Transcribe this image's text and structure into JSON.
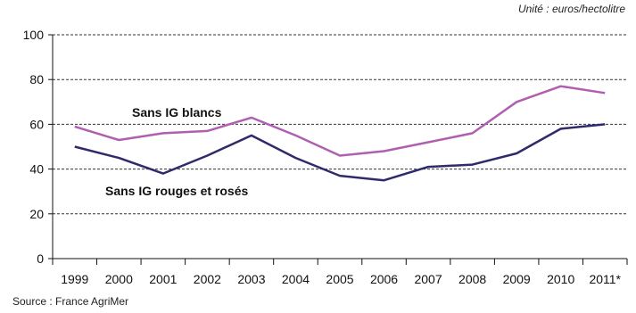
{
  "unit_note": "Unité : euros/hectolitre",
  "source_note": "Source : France AgriMer",
  "chart_data": {
    "type": "line",
    "x": [
      "1999",
      "2000",
      "2001",
      "2002",
      "2003",
      "2004",
      "2005",
      "2006",
      "2007",
      "2008",
      "2009",
      "2010",
      "2011*"
    ],
    "ylim": [
      0,
      100
    ],
    "yticks": [
      0,
      20,
      40,
      60,
      80,
      100
    ],
    "grid": true,
    "series": [
      {
        "name": "Sans IG blancs",
        "color": "#b05fb0",
        "values": [
          59,
          53,
          56,
          57,
          63,
          55,
          46,
          48,
          52,
          56,
          70,
          77,
          74
        ]
      },
      {
        "name": "Sans IG rouges et rosés",
        "color": "#2f2a6b",
        "values": [
          50,
          45,
          38,
          46,
          55,
          45,
          37,
          35,
          41,
          42,
          47,
          58,
          60
        ]
      }
    ]
  }
}
